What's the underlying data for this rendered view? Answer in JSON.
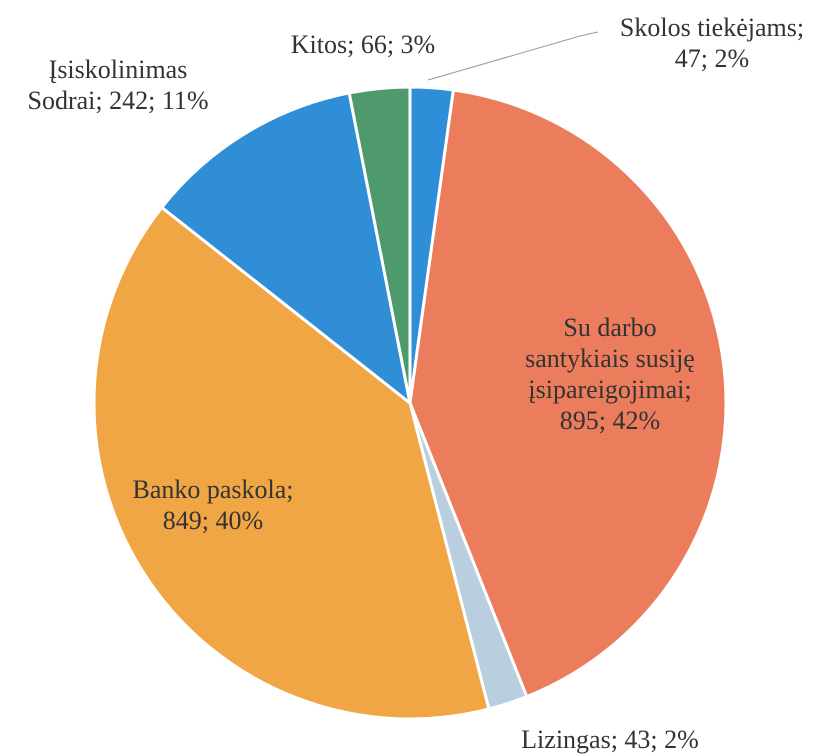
{
  "chart_data": {
    "type": "pie",
    "labels": [
      [
        "Skolos tiekėjams;",
        "47; 2%"
      ],
      [
        "Su darbo",
        "santykiais susiję",
        "įsipareigojimai;",
        "895; 42%"
      ],
      [
        "Lizingas; 43; 2%"
      ],
      [
        "Banko paskola;",
        "849; 40%"
      ],
      [
        "Įsiskolinimas",
        "Sodrai; 242; 11%"
      ],
      [
        "Kitos; 66; 3%"
      ]
    ],
    "values": [
      47,
      895,
      43,
      849,
      242,
      66
    ],
    "colors": [
      "#2e8fd8",
      "#ec7d5c",
      "#b9cfe0",
      "#f0a644",
      "#2f8ed6",
      "#4f9a6c"
    ]
  }
}
